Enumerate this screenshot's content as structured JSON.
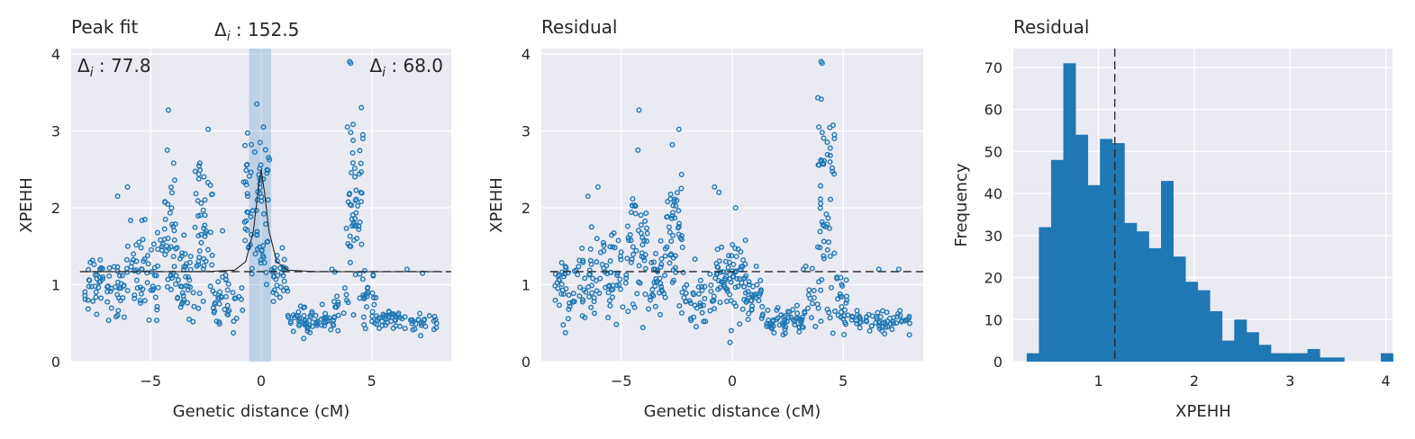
{
  "colors": {
    "marker": "#1f77b4",
    "axes_bg": "#eaeaf2",
    "grid": "#ffffff",
    "text": "#262626",
    "line": "#262626"
  },
  "chart_data": [
    {
      "type": "scatter",
      "title": "Peak fit",
      "xlabel": "Genetic distance (cM)",
      "ylabel": "XPEHH",
      "xlim": [
        -8.6,
        8.6
      ],
      "ylim": [
        0,
        4.07
      ],
      "xticks": [
        -5,
        0,
        5
      ],
      "xtick_labels": [
        "−5",
        "0",
        "5"
      ],
      "yticks": [
        0,
        1,
        2,
        3,
        4
      ],
      "ytick_labels": [
        "0",
        "1",
        "2",
        "3",
        "4"
      ],
      "mean_line": 1.17,
      "peak_band_x": [
        -0.55,
        0.45
      ],
      "annotations": {
        "left": "77.8",
        "center": "152.5",
        "right": "68.0"
      },
      "fit_curve": {
        "x": [
          -8.2,
          -2.5,
          -1.2,
          -0.7,
          -0.35,
          -0.15,
          0.0,
          0.15,
          0.35,
          0.7,
          1.2,
          2.5,
          8.2
        ],
        "y": [
          1.17,
          1.17,
          1.19,
          1.3,
          1.7,
          2.2,
          2.5,
          2.2,
          1.7,
          1.3,
          1.19,
          1.17,
          1.17
        ]
      },
      "series_groups": [
        {
          "x0": -8.0,
          "x1": -6.2,
          "y": 0.95,
          "spread": 0.38,
          "n": 60
        },
        {
          "x0": -6.4,
          "x1": -4.6,
          "y": 1.2,
          "spread": 0.5,
          "n": 60
        },
        {
          "x0": -4.6,
          "x1": -3.8,
          "y": 1.5,
          "spread": 0.7,
          "n": 40
        },
        {
          "x0": -3.8,
          "x1": -3.0,
          "y": 1.0,
          "spread": 0.45,
          "n": 35
        },
        {
          "x0": -3.0,
          "x1": -2.2,
          "y": 1.7,
          "spread": 0.7,
          "n": 45
        },
        {
          "x0": -2.2,
          "x1": -0.8,
          "y": 0.85,
          "spread": 0.35,
          "n": 40
        },
        {
          "x0": -0.8,
          "x1": 0.4,
          "y": 2.0,
          "spread": 0.85,
          "n": 70
        },
        {
          "x0": 0.4,
          "x1": 1.2,
          "y": 1.05,
          "spread": 0.35,
          "n": 30
        },
        {
          "x0": 1.2,
          "x1": 3.3,
          "y": 0.55,
          "spread": 0.15,
          "n": 60
        },
        {
          "x0": 3.3,
          "x1": 4.0,
          "y": 0.8,
          "spread": 0.4,
          "n": 15
        },
        {
          "x0": 3.85,
          "x1": 4.6,
          "y": 1.9,
          "spread": 1.0,
          "n": 50
        },
        {
          "x0": 4.6,
          "x1": 5.2,
          "y": 0.8,
          "spread": 0.3,
          "n": 25
        },
        {
          "x0": 5.2,
          "x1": 8.0,
          "y": 0.52,
          "spread": 0.12,
          "n": 60
        }
      ],
      "outliers": [
        {
          "x": -4.2,
          "y": 3.27
        },
        {
          "x": -2.4,
          "y": 3.02
        },
        {
          "x": -4.25,
          "y": 2.75
        },
        {
          "x": -0.2,
          "y": 3.35
        },
        {
          "x": 0.1,
          "y": 3.05
        },
        {
          "x": -0.05,
          "y": 2.85
        },
        {
          "x": 3.9,
          "y": 3.05
        },
        {
          "x": 4.05,
          "y": 2.98
        },
        {
          "x": 4.6,
          "y": 2.95
        },
        {
          "x": 4.6,
          "y": 2.9
        },
        {
          "x": 4.0,
          "y": 3.9
        },
        {
          "x": 4.05,
          "y": 3.88
        },
        {
          "x": -6.5,
          "y": 2.15
        },
        {
          "x": -6.05,
          "y": 2.27
        },
        {
          "x": -1.75,
          "y": 1.7
        },
        {
          "x": 6.6,
          "y": 1.2
        },
        {
          "x": 7.3,
          "y": 1.15
        },
        {
          "x": 3.2,
          "y": 1.2
        }
      ]
    },
    {
      "type": "scatter",
      "title": "Residual",
      "xlabel": "Genetic distance (cM)",
      "ylabel": "XPEHH",
      "xlim": [
        -8.6,
        8.6
      ],
      "ylim": [
        0,
        4.07
      ],
      "xticks": [
        -5,
        0,
        5
      ],
      "xtick_labels": [
        "−5",
        "0",
        "5"
      ],
      "yticks": [
        0,
        1,
        2,
        3,
        4
      ],
      "ytick_labels": [
        "0",
        "1",
        "2",
        "3",
        "4"
      ],
      "mean_line": 1.17,
      "series_groups": [
        {
          "x0": -8.0,
          "x1": -6.2,
          "y": 0.95,
          "spread": 0.38,
          "n": 60
        },
        {
          "x0": -6.4,
          "x1": -4.6,
          "y": 1.2,
          "spread": 0.5,
          "n": 60
        },
        {
          "x0": -4.6,
          "x1": -3.8,
          "y": 1.5,
          "spread": 0.7,
          "n": 40
        },
        {
          "x0": -3.8,
          "x1": -3.0,
          "y": 1.0,
          "spread": 0.45,
          "n": 35
        },
        {
          "x0": -3.0,
          "x1": -2.2,
          "y": 1.7,
          "spread": 0.7,
          "n": 45
        },
        {
          "x0": -2.2,
          "x1": -0.8,
          "y": 0.85,
          "spread": 0.35,
          "n": 40
        },
        {
          "x0": -0.8,
          "x1": 0.6,
          "y": 1.05,
          "spread": 0.4,
          "n": 70
        },
        {
          "x0": 0.6,
          "x1": 1.3,
          "y": 0.9,
          "spread": 0.3,
          "n": 30
        },
        {
          "x0": 1.3,
          "x1": 3.3,
          "y": 0.55,
          "spread": 0.15,
          "n": 60
        },
        {
          "x0": 3.3,
          "x1": 4.0,
          "y": 0.8,
          "spread": 0.4,
          "n": 15
        },
        {
          "x0": 3.85,
          "x1": 4.6,
          "y": 1.9,
          "spread": 1.0,
          "n": 50
        },
        {
          "x0": 4.6,
          "x1": 5.2,
          "y": 0.8,
          "spread": 0.3,
          "n": 25
        },
        {
          "x0": 5.2,
          "x1": 8.0,
          "y": 0.52,
          "spread": 0.12,
          "n": 60
        }
      ],
      "outliers": [
        {
          "x": -4.2,
          "y": 3.27
        },
        {
          "x": -2.4,
          "y": 3.02
        },
        {
          "x": -4.25,
          "y": 2.75
        },
        {
          "x": -2.7,
          "y": 2.82
        },
        {
          "x": -0.8,
          "y": 2.27
        },
        {
          "x": -0.6,
          "y": 2.2
        },
        {
          "x": 0.15,
          "y": 2.0
        },
        {
          "x": -0.1,
          "y": 0.25
        },
        {
          "x": 3.9,
          "y": 3.05
        },
        {
          "x": 4.05,
          "y": 2.98
        },
        {
          "x": 4.6,
          "y": 2.95
        },
        {
          "x": 4.6,
          "y": 2.9
        },
        {
          "x": 4.0,
          "y": 3.9
        },
        {
          "x": 4.05,
          "y": 3.88
        },
        {
          "x": -6.5,
          "y": 2.15
        },
        {
          "x": -6.05,
          "y": 2.27
        },
        {
          "x": 6.6,
          "y": 1.2
        },
        {
          "x": 7.5,
          "y": 1.2
        },
        {
          "x": 3.2,
          "y": 1.2
        }
      ]
    },
    {
      "type": "bar",
      "title": "Residual",
      "xlabel": "XPEHH",
      "ylabel": "Frequency",
      "xlim": [
        0.11,
        4.07
      ],
      "ylim": [
        0,
        74.5
      ],
      "xticks": [
        1,
        2,
        3,
        4
      ],
      "xtick_labels": [
        "1",
        "2",
        "3",
        "4"
      ],
      "yticks": [
        0,
        10,
        20,
        30,
        40,
        50,
        60,
        70
      ],
      "ytick_labels": [
        "0",
        "10",
        "20",
        "30",
        "40",
        "50",
        "60",
        "70"
      ],
      "mean_line": 1.17,
      "bin_start": 0.25,
      "bin_width": 0.1275,
      "values": [
        2,
        32,
        48,
        71,
        54,
        42,
        53,
        52,
        33,
        31,
        27,
        43,
        25,
        19,
        17,
        12,
        5,
        10,
        7,
        4,
        2,
        2,
        2,
        3,
        1,
        1,
        0,
        0,
        0,
        2
      ]
    }
  ]
}
